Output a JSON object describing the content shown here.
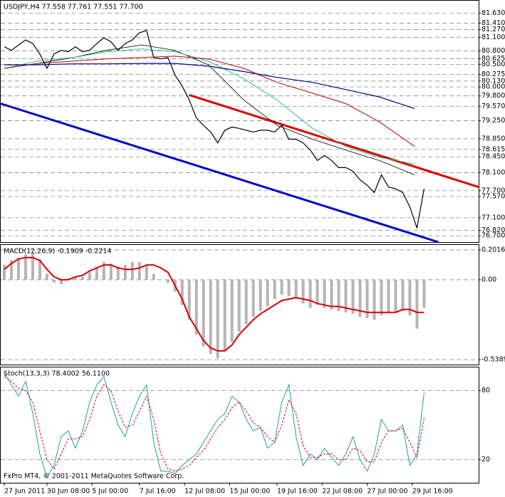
{
  "chart_data": [
    {
      "type": "line",
      "title": "USDJPY,H4  77.558 77.761 77.551 77.700",
      "xlim": [
        -1.5,
        200
      ],
      "ylim": [
        76.56,
        81.91
      ],
      "yticks": [
        {
          "value": 81.63,
          "label": "81.630"
        },
        {
          "value": 81.41,
          "label": "81.410"
        },
        {
          "value": 81.27,
          "label": "81.270"
        },
        {
          "value": 81.1,
          "label": "81.100"
        },
        {
          "value": 80.8,
          "label": "80.800"
        },
        80.625,
        {
          "value": 80.5,
          "label": "80.500"
        },
        80.275,
        {
          "value": 80.13,
          "label": "80.130"
        },
        {
          "value": 80,
          "label": "80.000"
        },
        {
          "value": 79.8,
          "label": "79.800"
        },
        {
          "value": 79.57,
          "label": "79.570"
        },
        {
          "value": 79.25,
          "label": "79.250"
        },
        {
          "value": 78.85,
          "label": "78.850"
        },
        78.615,
        {
          "value": 78.45,
          "label": "78.450"
        },
        {
          "value": 78.1,
          "label": "78.100"
        },
        {
          "value": 77.7,
          "label": "77.700"
        },
        {
          "value": 77.57,
          "label": "77.570"
        },
        {
          "value": 77.1,
          "label": "77.100"
        },
        {
          "value": 76.7,
          "label": "76.700"
        },
        {
          "value": 76.82,
          "label": "76.820"
        }
      ],
      "grid": true,
      "series": [
        {
          "name": "USDJPY",
          "color": "#000000",
          "width": 1.2,
          "x": [
            0,
            3,
            6,
            9,
            12,
            15,
            18,
            21,
            24,
            27,
            30,
            33,
            36,
            39,
            42,
            45,
            48,
            51,
            54,
            57,
            60,
            63,
            66,
            69,
            72,
            75,
            78,
            81,
            84,
            87,
            90,
            93,
            96,
            99,
            102,
            105,
            108,
            111,
            114,
            117,
            120,
            123,
            126,
            129,
            132,
            135,
            138,
            141,
            144,
            147,
            150,
            153,
            156,
            159,
            162,
            165,
            168,
            171,
            174,
            177
          ],
          "values": [
            80.89,
            80.81,
            80.93,
            81.04,
            80.96,
            80.73,
            80.41,
            80.73,
            80.81,
            80.78,
            80.89,
            80.78,
            80.81,
            80.96,
            81.09,
            81.0,
            80.81,
            80.96,
            81.04,
            81.2,
            81.25,
            80.65,
            80.62,
            80.65,
            80.26,
            80.02,
            79.71,
            79.31,
            79.15,
            79.0,
            78.76,
            79.04,
            79.11,
            79.08,
            79.04,
            79.0,
            79.04,
            79.04,
            79.0,
            79.15,
            78.84,
            78.84,
            78.76,
            78.6,
            78.37,
            78.48,
            78.37,
            78.21,
            78.21,
            78.13,
            77.94,
            77.82,
            77.66,
            78.05,
            77.78,
            77.74,
            77.66,
            77.34,
            76.87,
            77.74
          ]
        },
        {
          "name": "MA fast",
          "color": "#000000",
          "width": 0.8,
          "x": [
            0,
            14,
            29,
            43,
            58,
            72,
            86,
            101,
            115,
            130,
            144,
            158,
            173
          ],
          "values": [
            80.41,
            80.52,
            80.65,
            80.81,
            80.93,
            80.81,
            80.49,
            79.71,
            79.15,
            78.84,
            78.6,
            78.37,
            78.05
          ]
        },
        {
          "name": "MA medium",
          "color": "#2fc08a",
          "width": 1,
          "x": [
            0,
            14,
            29,
            43,
            58,
            72,
            86,
            101,
            115,
            130,
            144,
            158,
            173
          ],
          "values": [
            80.41,
            80.57,
            80.65,
            80.78,
            80.84,
            80.78,
            80.57,
            80.18,
            79.71,
            79.08,
            78.68,
            78.44,
            78.29
          ]
        },
        {
          "name": "MA slow",
          "color": "#c00000",
          "width": 1,
          "x": [
            0,
            14,
            29,
            43,
            58,
            72,
            86,
            101,
            115,
            130,
            144,
            158,
            173
          ],
          "values": [
            80.41,
            80.52,
            80.57,
            80.62,
            80.65,
            80.68,
            80.62,
            80.41,
            80.1,
            79.86,
            79.63,
            79.23,
            78.68
          ]
        },
        {
          "name": "MA long",
          "color": "#00008b",
          "width": 1.2,
          "x": [
            0,
            14,
            29,
            43,
            58,
            72,
            86,
            101,
            115,
            130,
            144,
            158,
            173
          ],
          "values": [
            80.49,
            80.49,
            80.51,
            80.51,
            80.52,
            80.52,
            80.46,
            80.34,
            80.21,
            80.1,
            79.94,
            79.78,
            79.52
          ]
        }
      ],
      "trendlines": [
        {
          "color": "#e00000",
          "x": [
            78,
            200
          ],
          "values": [
            79.82,
            77.78
          ]
        },
        {
          "color": "#0000cc",
          "x": [
            -1.5,
            183
          ],
          "values": [
            79.63,
            76.56
          ]
        }
      ]
    },
    {
      "type": "bar",
      "title": "MACD(12,26,9) -0.1909 -0.2214",
      "xlim": [
        -1.5,
        200
      ],
      "ylim": [
        -0.572,
        0.235
      ],
      "yticks": [
        0.2016,
        {
          "value": 0,
          "label": "0.00"
        },
        -0.5389
      ],
      "grid": true,
      "series": [
        {
          "name": "MACD",
          "type": "bar",
          "color": "#b4b4b4",
          "x": [
            0,
            3,
            6,
            9,
            12,
            15,
            18,
            21,
            24,
            27,
            30,
            33,
            36,
            39,
            42,
            45,
            48,
            51,
            54,
            57,
            60,
            63,
            66,
            69,
            72,
            75,
            78,
            81,
            84,
            87,
            90,
            93,
            96,
            99,
            102,
            105,
            108,
            111,
            114,
            117,
            120,
            123,
            126,
            129,
            132,
            135,
            138,
            141,
            144,
            147,
            150,
            153,
            156,
            159,
            162,
            165,
            168,
            171,
            174,
            177
          ],
          "values": [
            0.1,
            0.13,
            0.15,
            0.17,
            0.18,
            0.14,
            0.04,
            -0.02,
            -0.03,
            0.01,
            0.02,
            0.02,
            0.05,
            0.09,
            0.12,
            0.11,
            0.09,
            0.1,
            0.12,
            0.12,
            0.1,
            0.04,
            0.0,
            -0.02,
            -0.08,
            -0.17,
            -0.27,
            -0.37,
            -0.45,
            -0.5,
            -0.53,
            -0.48,
            -0.42,
            -0.35,
            -0.3,
            -0.25,
            -0.21,
            -0.18,
            -0.13,
            -0.1,
            -0.11,
            -0.13,
            -0.16,
            -0.19,
            -0.17,
            -0.19,
            -0.2,
            -0.21,
            -0.22,
            -0.23,
            -0.25,
            -0.26,
            -0.27,
            -0.24,
            -0.22,
            -0.22,
            -0.21,
            -0.24,
            -0.33,
            -0.19
          ]
        },
        {
          "name": "Signal",
          "type": "line",
          "color": "#e00000",
          "width": 2,
          "x": [
            0,
            3,
            6,
            9,
            12,
            15,
            18,
            21,
            24,
            27,
            30,
            33,
            36,
            39,
            42,
            45,
            48,
            51,
            54,
            57,
            60,
            63,
            66,
            69,
            72,
            75,
            78,
            81,
            84,
            87,
            90,
            93,
            96,
            99,
            102,
            105,
            108,
            111,
            114,
            117,
            120,
            123,
            126,
            129,
            132,
            135,
            138,
            141,
            144,
            147,
            150,
            153,
            156,
            159,
            162,
            165,
            168,
            171,
            174,
            177
          ],
          "values": [
            0.07,
            0.11,
            0.14,
            0.15,
            0.15,
            0.13,
            0.07,
            0.02,
            0.0,
            0.0,
            0.02,
            0.03,
            0.06,
            0.08,
            0.1,
            0.1,
            0.08,
            0.07,
            0.07,
            0.08,
            0.1,
            0.1,
            0.08,
            0.05,
            -0.04,
            -0.13,
            -0.25,
            -0.33,
            -0.41,
            -0.46,
            -0.48,
            -0.48,
            -0.44,
            -0.37,
            -0.32,
            -0.27,
            -0.23,
            -0.2,
            -0.17,
            -0.14,
            -0.13,
            -0.12,
            -0.13,
            -0.14,
            -0.16,
            -0.17,
            -0.18,
            -0.18,
            -0.19,
            -0.2,
            -0.21,
            -0.22,
            -0.22,
            -0.22,
            -0.22,
            -0.22,
            -0.2,
            -0.2,
            -0.22,
            -0.22
          ]
        }
      ]
    },
    {
      "type": "line",
      "title": "Stoch(13,3,3) 78.4002 56.1100",
      "xlim": [
        -1.5,
        200
      ],
      "ylim": [
        0,
        100
      ],
      "yticks": [
        80,
        20
      ],
      "grid": true,
      "xticks": [
        {
          "value": 0,
          "label": "27 Jun 2011"
        },
        {
          "value": 18,
          "label": "30 Jun 08:00"
        },
        {
          "value": 37,
          "label": "5 Jul 00:00"
        },
        {
          "value": 57,
          "label": "7 Jul 16:00"
        },
        {
          "value": 76,
          "label": "12 Jul 08:00"
        },
        {
          "value": 95,
          "label": "15 Jul 00:00"
        },
        {
          "value": 115,
          "label": "19 Jul 16:00"
        },
        {
          "value": 134,
          "label": "22 Jul 08:00"
        },
        {
          "value": 153,
          "label": "27 Jul 00:00"
        },
        {
          "value": 172,
          "label": "29 Jul 16:00"
        }
      ],
      "annotation": "FxPro MT4, © 2001-2011 MetaQuotes Software Corp.",
      "series": [
        {
          "name": "%K",
          "type": "line",
          "color": "#20a0a0",
          "width": 1,
          "x": [
            0,
            3,
            6,
            9,
            12,
            15,
            18,
            21,
            24,
            27,
            30,
            33,
            36,
            39,
            42,
            45,
            48,
            51,
            54,
            57,
            60,
            63,
            66,
            69,
            72,
            75,
            78,
            81,
            84,
            87,
            90,
            93,
            96,
            99,
            102,
            105,
            108,
            111,
            114,
            117,
            120,
            123,
            126,
            129,
            132,
            135,
            138,
            141,
            144,
            147,
            150,
            153,
            156,
            159,
            162,
            165,
            168,
            171,
            174,
            177
          ],
          "values": [
            95,
            85,
            75,
            88,
            60,
            25,
            5,
            15,
            40,
            45,
            30,
            45,
            70,
            85,
            92,
            70,
            50,
            40,
            60,
            75,
            85,
            35,
            10,
            10,
            8,
            15,
            20,
            25,
            35,
            45,
            55,
            60,
            75,
            70,
            55,
            45,
            48,
            30,
            35,
            70,
            85,
            40,
            15,
            25,
            20,
            30,
            22,
            15,
            25,
            40,
            20,
            10,
            25,
            55,
            45,
            45,
            50,
            15,
            25,
            78
          ]
        },
        {
          "name": "%D",
          "type": "line",
          "color": "#e00000",
          "width": 1,
          "dash": true,
          "x": [
            0,
            3,
            6,
            9,
            12,
            15,
            18,
            21,
            24,
            27,
            30,
            33,
            36,
            39,
            42,
            45,
            48,
            51,
            54,
            57,
            60,
            63,
            66,
            69,
            72,
            75,
            78,
            81,
            84,
            87,
            90,
            93,
            96,
            99,
            102,
            105,
            108,
            111,
            114,
            117,
            120,
            123,
            126,
            129,
            132,
            135,
            138,
            141,
            144,
            147,
            150,
            153,
            156,
            159,
            162,
            165,
            168,
            171,
            174,
            177
          ],
          "values": [
            92,
            88,
            82,
            80,
            70,
            45,
            20,
            12,
            25,
            38,
            38,
            40,
            55,
            75,
            85,
            80,
            62,
            48,
            50,
            62,
            75,
            55,
            25,
            12,
            10,
            12,
            15,
            22,
            28,
            38,
            48,
            55,
            65,
            70,
            62,
            52,
            48,
            40,
            35,
            50,
            72,
            60,
            32,
            22,
            22,
            25,
            25,
            20,
            20,
            30,
            28,
            18,
            18,
            35,
            45,
            45,
            47,
            35,
            22,
            56
          ]
        }
      ]
    }
  ]
}
